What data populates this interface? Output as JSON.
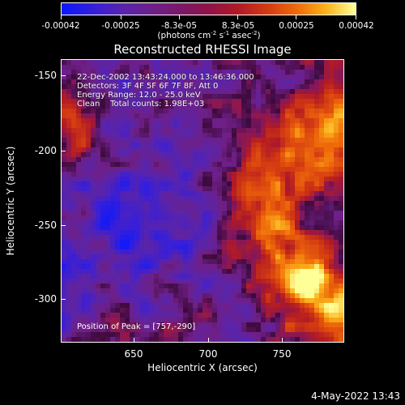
{
  "colorbar": {
    "tick_labels": [
      "-0.00042",
      "-0.00025",
      "-8.3e-05",
      "8.3e-05",
      "0.00025",
      "0.00042"
    ],
    "tick_values": [
      -0.00042,
      -0.00025,
      -8.3e-05,
      8.3e-05,
      0.00025,
      0.00042
    ],
    "range": [
      -0.00042,
      0.00042
    ],
    "unit_prefix": "(photons cm",
    "unit_exp1": "-2",
    "unit_mid1": " s",
    "unit_exp2": "-1",
    "unit_mid2": " asec",
    "unit_exp3": "-2",
    "unit_suffix": ")"
  },
  "title": "Reconstructed RHESSI Image",
  "annotations": {
    "time": "22-Dec-2002 13:43:24.000 to 13:46:36.000",
    "detectors": "Detectors: 3F 4F 5F 6F 7F 8F, Att 0",
    "energy": "Energy Range: 12.0 - 25.0 keV",
    "clean": "Clean    Total counts: 1.98E+03",
    "peak": "Position of Peak = [757,-290]"
  },
  "axes": {
    "xlabel": "Heliocentric X (arcsec)",
    "ylabel": "Heliocentric Y (arcsec)",
    "xticks": [
      "650",
      "700",
      "750"
    ],
    "xtick_values": [
      650,
      700,
      750
    ],
    "yticks": [
      "-150",
      "-200",
      "-250",
      "-300"
    ],
    "ytick_values": [
      -150,
      -200,
      -250,
      -300
    ],
    "xlim": [
      605,
      790
    ],
    "ylim": [
      -330,
      -140
    ]
  },
  "footer": {
    "date": "4-May-2022 13:43"
  },
  "colors": {
    "low": "#0a18ff",
    "mid": "#6f1f86",
    "high": "#ffff98"
  }
}
